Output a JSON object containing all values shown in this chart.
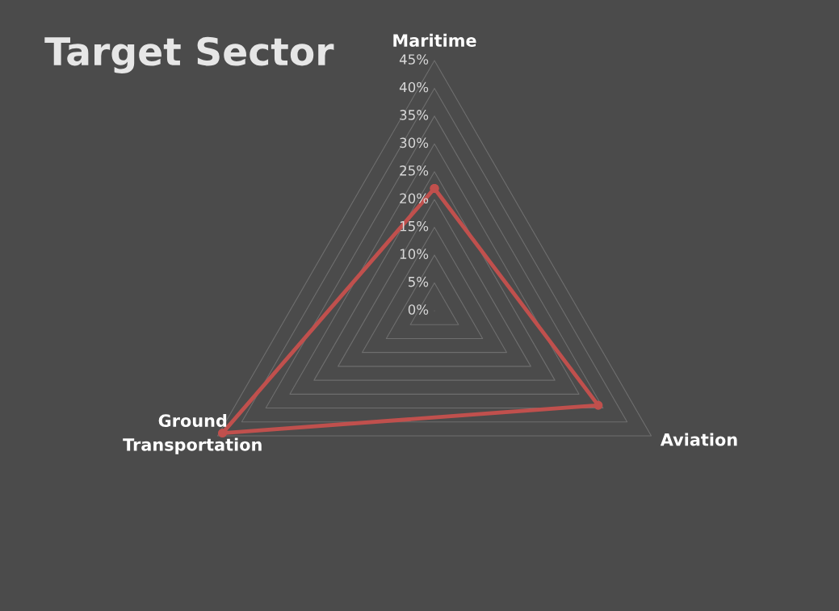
{
  "chart_data": {
    "type": "radar",
    "title": "Target Sector",
    "categories": [
      "Maritime",
      "Aviation",
      "Ground Transportation"
    ],
    "series": [
      {
        "color": "#c0504d",
        "values": [
          22,
          34,
          44
        ]
      }
    ],
    "ylim": [
      0,
      45
    ],
    "yticks": [
      {
        "value": 0,
        "label": "0%"
      },
      {
        "value": 5,
        "label": "5%"
      },
      {
        "value": 10,
        "label": "10%"
      },
      {
        "value": 15,
        "label": "15%"
      },
      {
        "value": 20,
        "label": "20%"
      },
      {
        "value": 25,
        "label": "25%"
      },
      {
        "value": 30,
        "label": "30%"
      },
      {
        "value": 35,
        "label": "35%"
      },
      {
        "value": 40,
        "label": "40%"
      },
      {
        "value": 45,
        "label": "45%"
      }
    ],
    "grid": true,
    "marker": "circle",
    "line_style": "solid"
  }
}
